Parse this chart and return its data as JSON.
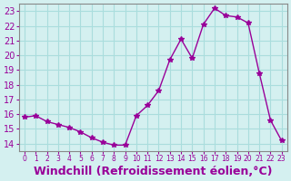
{
  "x": [
    0,
    1,
    2,
    3,
    4,
    5,
    6,
    7,
    8,
    9,
    10,
    11,
    12,
    13,
    14,
    15,
    16,
    17,
    18,
    19,
    20,
    21,
    22,
    23
  ],
  "y": [
    15.8,
    15.9,
    15.5,
    15.3,
    15.1,
    14.8,
    14.4,
    14.1,
    13.9,
    13.9,
    15.9,
    16.6,
    17.6,
    19.7,
    21.1,
    19.8,
    22.1,
    23.2,
    22.7,
    22.6,
    22.2,
    18.8,
    15.6,
    14.2
  ],
  "line_color": "#990099",
  "marker": "*",
  "marker_size": 4,
  "background_color": "#d4f0f0",
  "grid_color": "#aadddd",
  "xlabel": "Windchill (Refroidissement éolien,°C)",
  "xlabel_color": "#990099",
  "xlabel_fontsize": 9,
  "ylim": [
    13.5,
    23.5
  ],
  "xlim": [
    -0.5,
    23.5
  ],
  "yticks": [
    14,
    15,
    16,
    17,
    18,
    19,
    20,
    21,
    22,
    23
  ],
  "xticks": [
    0,
    1,
    2,
    3,
    4,
    5,
    6,
    7,
    8,
    9,
    10,
    11,
    12,
    13,
    14,
    15,
    16,
    17,
    18,
    19,
    20,
    21,
    22,
    23
  ],
  "tick_color": "#990099",
  "tick_fontsize": 7,
  "spine_color": "#888888"
}
